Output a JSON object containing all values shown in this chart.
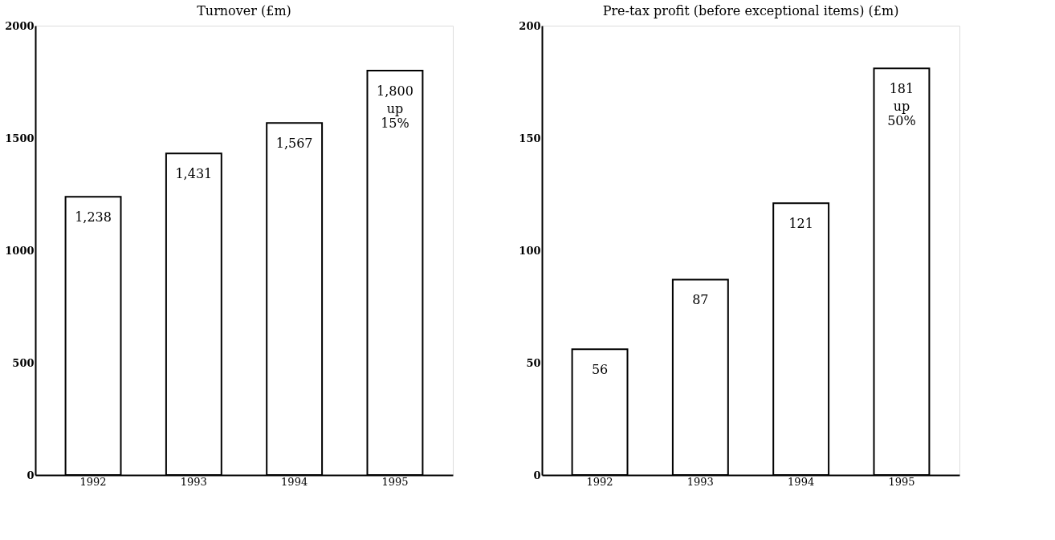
{
  "chart_data": [
    {
      "type": "bar",
      "title": "Turnover (£m)",
      "categories": [
        "1992",
        "1993",
        "1994",
        "1995"
      ],
      "values": [
        1238,
        1431,
        1567,
        1800
      ],
      "color": "#ffffff",
      "value_labels": [
        "1,238",
        "1,431",
        "1,567",
        "1,800"
      ],
      "annotations": [
        {
          "text": "up 15%",
          "x": "1995",
          "y": 1800
        }
      ],
      "ylim": [
        0,
        2000
      ],
      "yticks": [
        0,
        500,
        1000,
        1500,
        2000
      ],
      "grid": false
    },
    {
      "type": "bar",
      "title": "Pre-tax profit (before exceptional items) (£m)",
      "categories": [
        "1992",
        "1993",
        "1994",
        "1995"
      ],
      "values": [
        56,
        87,
        121,
        181
      ],
      "color": "#ffffff",
      "value_labels": [
        "56",
        "87",
        "121",
        "181"
      ],
      "annotations": [
        {
          "text": "up 50%",
          "x": "1995",
          "y": 181
        }
      ],
      "ylim": [
        0,
        200
      ],
      "yticks": [
        0,
        50,
        100,
        150,
        200
      ],
      "grid": false
    }
  ]
}
